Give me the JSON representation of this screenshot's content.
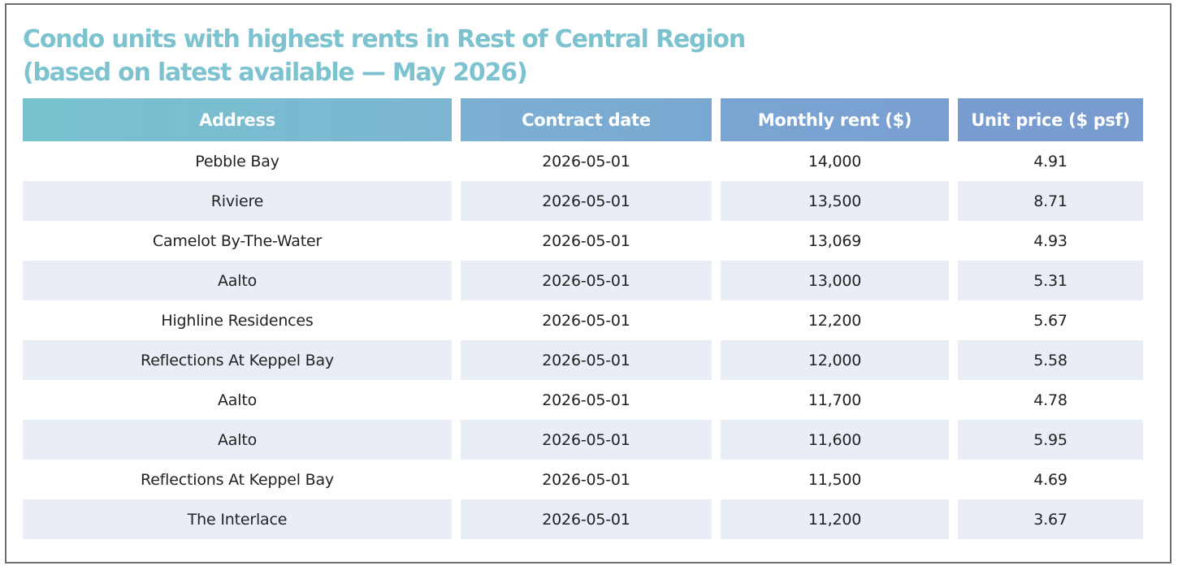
{
  "title": {
    "line1": "Condo units with highest rents in Rest of Central Region",
    "line2": "(based on latest available — May 2026)"
  },
  "table": {
    "headers": [
      "Address",
      "Contract date",
      "Monthly rent ($)",
      "Unit price ($ psf)"
    ],
    "rows": [
      [
        "Pebble Bay",
        "2026-05-01",
        "14,000",
        "4.91"
      ],
      [
        "Riviere",
        "2026-05-01",
        "13,500",
        "8.71"
      ],
      [
        "Camelot By-The-Water",
        "2026-05-01",
        "13,069",
        "4.93"
      ],
      [
        "Aalto",
        "2026-05-01",
        "13,000",
        "5.31"
      ],
      [
        "Highline Residences",
        "2026-05-01",
        "12,200",
        "5.67"
      ],
      [
        "Reflections At Keppel Bay",
        "2026-05-01",
        "12,000",
        "5.58"
      ],
      [
        "Aalto",
        "2026-05-01",
        "11,700",
        "4.78"
      ],
      [
        "Aalto",
        "2026-05-01",
        "11,600",
        "5.95"
      ],
      [
        "Reflections At Keppel Bay",
        "2026-05-01",
        "11,500",
        "4.69"
      ],
      [
        "The Interlace",
        "2026-05-01",
        "11,200",
        "3.67"
      ]
    ]
  },
  "colors": {
    "title": "#7dc3cf",
    "header_start": "#78c2cf",
    "header_end": "#789bd0",
    "stripe": "#e9eef6",
    "border": "#6f6f6f"
  }
}
